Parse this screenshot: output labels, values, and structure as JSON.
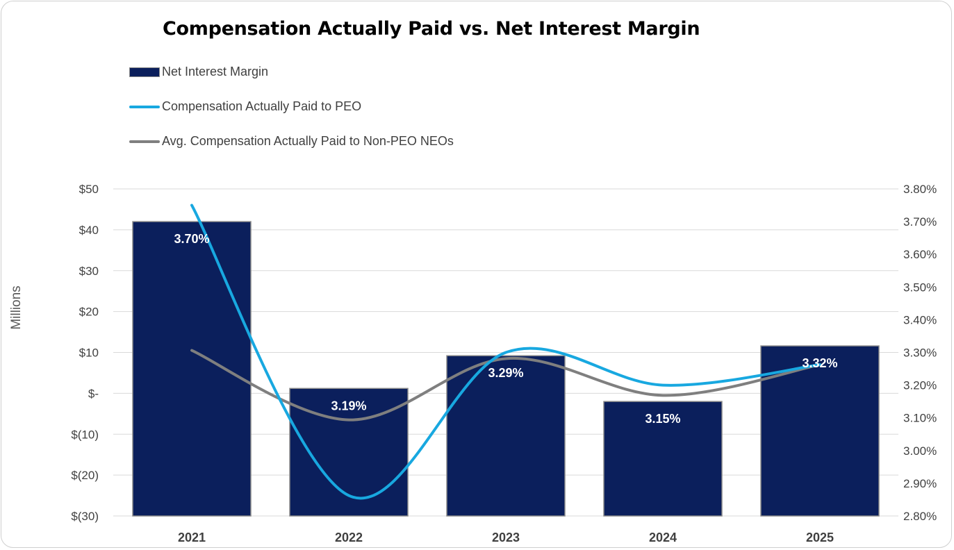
{
  "chart_data": {
    "type": "bar",
    "title": "Compensation Actually Paid vs. Net Interest Margin",
    "categories": [
      "2021",
      "2022",
      "2023",
      "2024",
      "2025"
    ],
    "ylabel": "Millions",
    "y_left_ticks": [
      "$50",
      "$40",
      "$30",
      "$20",
      "$10",
      "$-",
      "$(10)",
      "$(20)",
      "$(30)"
    ],
    "y_left_range": [
      -30,
      50
    ],
    "y_right_ticks": [
      "3.80%",
      "3.70%",
      "3.60%",
      "3.50%",
      "3.40%",
      "3.30%",
      "3.20%",
      "3.10%",
      "3.00%",
      "2.90%",
      "2.80%"
    ],
    "y_right_range": [
      2.8,
      3.8
    ],
    "grid": true,
    "legend_position": "top-left",
    "series": [
      {
        "name": "Net Interest Margin",
        "type": "bar",
        "axis": "right",
        "color": "#0b1f5c",
        "values": [
          3.7,
          3.19,
          3.29,
          3.15,
          3.32
        ],
        "labels": [
          "3.70%",
          "3.19%",
          "3.29%",
          "3.15%",
          "3.32%"
        ]
      },
      {
        "name": "Compensation Actually Paid to PEO",
        "type": "line",
        "axis": "left",
        "color": "#18a8e0",
        "values": [
          46,
          -25,
          10,
          2,
          7
        ]
      },
      {
        "name": "Avg. Compensation Actually Paid to Non-PEO NEOs",
        "type": "line",
        "axis": "left",
        "color": "#7f7f7f",
        "values": [
          10.5,
          -6.5,
          8.5,
          -0.5,
          7
        ]
      }
    ]
  }
}
